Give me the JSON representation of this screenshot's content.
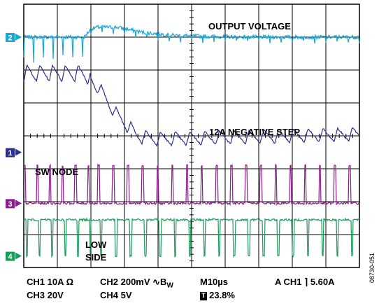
{
  "chart_data": {
    "type": "line",
    "instrument": "oscilloscope",
    "grid": true,
    "divisions": {
      "x": 10,
      "y": 8
    },
    "annotations": {
      "output_voltage": "OUTPUT VOLTAGE",
      "negative_step": "12A NEGATIVE STEP",
      "sw_node": "SW NODE",
      "low_side_1": "LOW",
      "low_side_2": "SIDE"
    },
    "channel_markers": [
      {
        "id": "2",
        "color": "#1aa7d6",
        "level_div": 7
      },
      {
        "id": "1",
        "color": "#2b2f8f",
        "level_div": 3.5
      },
      {
        "id": "3",
        "color": "#8b1c8b",
        "level_div": 1.95
      },
      {
        "id": "4",
        "color": "#1a9b5a",
        "level_div": 0.35
      }
    ],
    "series": [
      {
        "channel": "2",
        "color": "#1aa7d6",
        "kind": "output_voltage",
        "points_div": [
          [
            0,
            7.0
          ],
          [
            1.8,
            7.0
          ],
          [
            2.0,
            7.25
          ],
          [
            2.2,
            7.3
          ],
          [
            2.8,
            7.3
          ],
          [
            3.5,
            7.15
          ],
          [
            4.5,
            7.05
          ],
          [
            5.5,
            7.02
          ],
          [
            7,
            7.0
          ],
          [
            10,
            7.0
          ]
        ]
      },
      {
        "channel": "1",
        "color": "#2b2f8f",
        "kind": "sw_node_ripple",
        "points_div": [
          [
            0,
            5.9
          ],
          [
            1.8,
            5.9
          ],
          [
            2.2,
            5.5
          ],
          [
            2.8,
            4.6
          ],
          [
            3.4,
            4.0
          ],
          [
            4.0,
            3.9
          ],
          [
            10,
            4.05
          ]
        ]
      },
      {
        "channel": "3",
        "color": "#8b1c8b",
        "kind": "pulse_train"
      },
      {
        "channel": "4",
        "color": "#1a9b5a",
        "kind": "pulse_train"
      }
    ]
  },
  "footer": {
    "row1_ch1": "CH1  10A Ω",
    "row1_ch2": "CH2  200mV ∿B",
    "row1_ch2_sub": "W",
    "row1_time": "M10µs",
    "row1_trig": "A  CH1  ⌉  5.60A",
    "row2_ch3": "CH3  20V",
    "row2_ch4": "CH4  5V",
    "row2_t_icon": "T",
    "row2_pos": "23.8%"
  },
  "figure_id": "08730-051"
}
